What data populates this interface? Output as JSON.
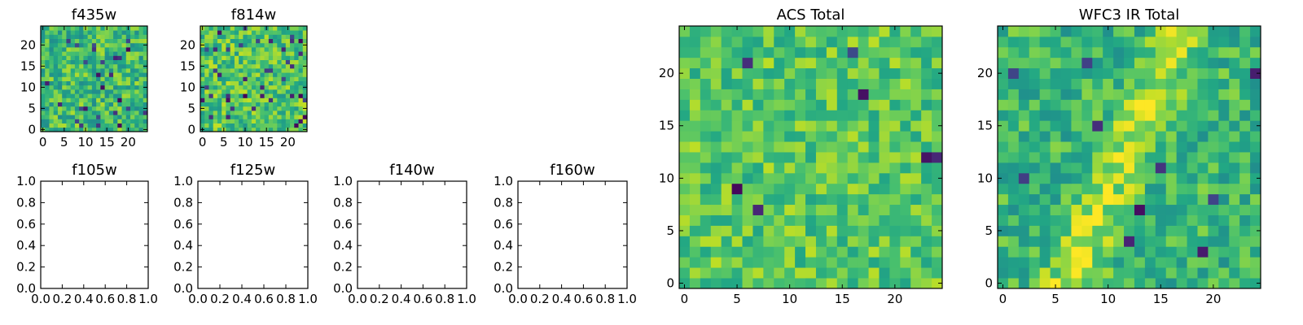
{
  "chart_data": [
    {
      "id": "f435w",
      "type": "heatmap",
      "title": "f435w",
      "grid_size": 25,
      "colormap": "viridis",
      "xticks": [
        "0",
        "5",
        "10",
        "15",
        "20"
      ],
      "yticks": [
        "0",
        "5",
        "10",
        "15",
        "20"
      ],
      "xlim": [
        -0.5,
        24.5
      ],
      "ylim": [
        -0.5,
        24.5
      ],
      "seed": 435,
      "mean": 0.68,
      "spread": 0.2,
      "dark_fraction": 0.04
    },
    {
      "id": "f814w",
      "type": "heatmap",
      "title": "f814w",
      "grid_size": 25,
      "colormap": "viridis",
      "xticks": [
        "0",
        "5",
        "10",
        "15",
        "20"
      ],
      "yticks": [
        "0",
        "5",
        "10",
        "15",
        "20"
      ],
      "xlim": [
        -0.5,
        24.5
      ],
      "ylim": [
        -0.5,
        24.5
      ],
      "seed": 814,
      "mean": 0.72,
      "spread": 0.19,
      "dark_fraction": 0.04
    },
    {
      "id": "f105w",
      "type": "empty",
      "title": "f105w",
      "xticks": [
        "0.0",
        "0.2",
        "0.4",
        "0.6",
        "0.8",
        "1.0"
      ],
      "yticks": [
        "0.0",
        "0.2",
        "0.4",
        "0.6",
        "0.8",
        "1.0"
      ],
      "xlim": [
        0,
        1
      ],
      "ylim": [
        0,
        1
      ]
    },
    {
      "id": "f125w",
      "type": "empty",
      "title": "f125w",
      "xticks": [
        "0.0",
        "0.2",
        "0.4",
        "0.6",
        "0.8",
        "1.0"
      ],
      "yticks": [
        "0.0",
        "0.2",
        "0.4",
        "0.6",
        "0.8",
        "1.0"
      ],
      "xlim": [
        0,
        1
      ],
      "ylim": [
        0,
        1
      ]
    },
    {
      "id": "f140w",
      "type": "empty",
      "title": "f140w",
      "xticks": [
        "0.0",
        "0.2",
        "0.4",
        "0.6",
        "0.8",
        "1.0"
      ],
      "yticks": [
        "0.0",
        "0.2",
        "0.4",
        "0.6",
        "0.8",
        "1.0"
      ],
      "xlim": [
        0,
        1
      ],
      "ylim": [
        0,
        1
      ]
    },
    {
      "id": "f160w",
      "type": "empty",
      "title": "f160w",
      "xticks": [
        "0.0",
        "0.2",
        "0.4",
        "0.6",
        "0.8",
        "1.0"
      ],
      "yticks": [
        "0.0",
        "0.2",
        "0.4",
        "0.6",
        "0.8",
        "1.0"
      ],
      "xlim": [
        0,
        1
      ],
      "ylim": [
        0,
        1
      ]
    },
    {
      "id": "acs-total",
      "type": "heatmap",
      "title": "ACS Total",
      "grid_size": 25,
      "colormap": "viridis",
      "xticks": [
        "0",
        "5",
        "10",
        "15",
        "20"
      ],
      "yticks": [
        "0",
        "5",
        "10",
        "15",
        "20"
      ],
      "xlim": [
        -0.5,
        24.5
      ],
      "ylim": [
        -0.5,
        24.5
      ],
      "seed": 2001,
      "mean": 0.74,
      "spread": 0.16,
      "dark_fraction": 0.02
    },
    {
      "id": "wfc3-ir-total",
      "type": "heatmap",
      "title": "WFC3 IR Total",
      "grid_size": 25,
      "colormap": "viridis",
      "xticks": [
        "0",
        "5",
        "10",
        "15",
        "20"
      ],
      "yticks": [
        "0",
        "5",
        "10",
        "15",
        "20"
      ],
      "xlim": [
        -0.5,
        24.5
      ],
      "ylim": [
        -0.5,
        24.5
      ],
      "seed": 3003,
      "mean": 0.66,
      "spread": 0.17,
      "dark_fraction": 0.03,
      "diagonal_ridge": true
    }
  ]
}
